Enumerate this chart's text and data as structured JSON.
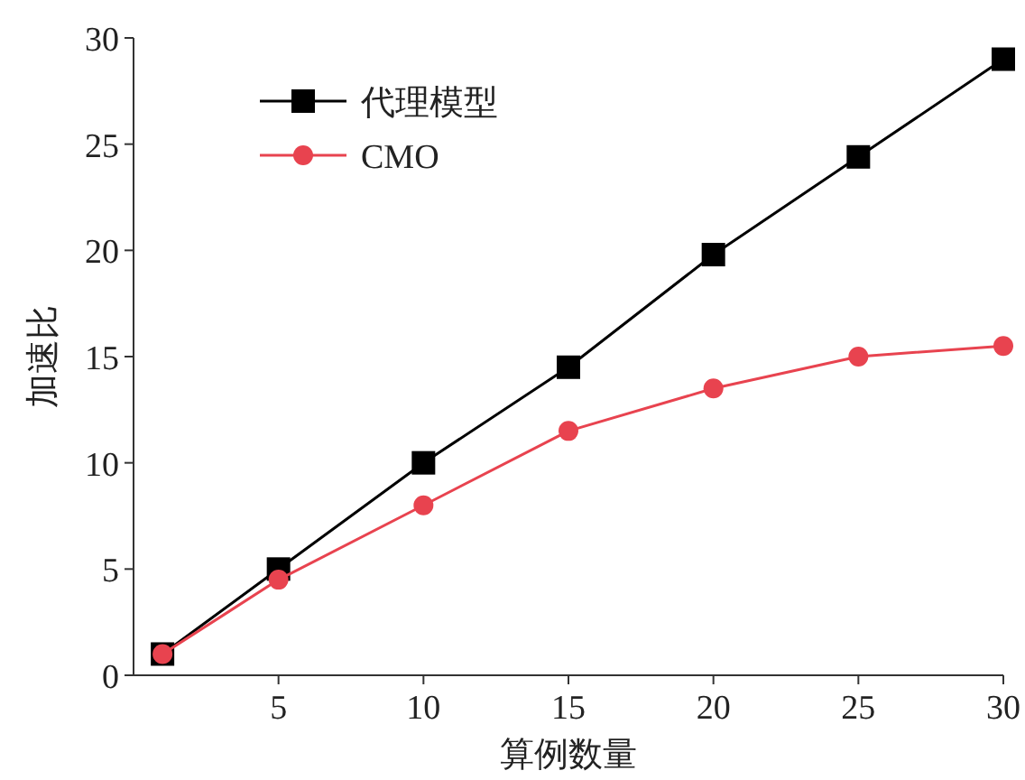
{
  "chart_data": {
    "type": "line",
    "xlabel": "算例数量",
    "ylabel": "加速比",
    "x": [
      1,
      5,
      10,
      15,
      20,
      25,
      30
    ],
    "series": [
      {
        "name": "代理模型",
        "color": "#000000",
        "marker": "square",
        "values": [
          1,
          5,
          10,
          14.5,
          19.8,
          24.4,
          29
        ]
      },
      {
        "name": "CMO",
        "color": "#e8434f",
        "marker": "circle",
        "values": [
          1,
          4.5,
          8,
          11.5,
          13.5,
          15,
          15.5
        ]
      }
    ],
    "xlim": [
      0,
      30
    ],
    "xticks": [
      5,
      10,
      15,
      20,
      25,
      30
    ],
    "ylim": [
      0,
      30
    ],
    "yticks": [
      0,
      5,
      10,
      15,
      20,
      25,
      30
    ],
    "grid": false,
    "legend": "top left",
    "line_style": "solid"
  }
}
